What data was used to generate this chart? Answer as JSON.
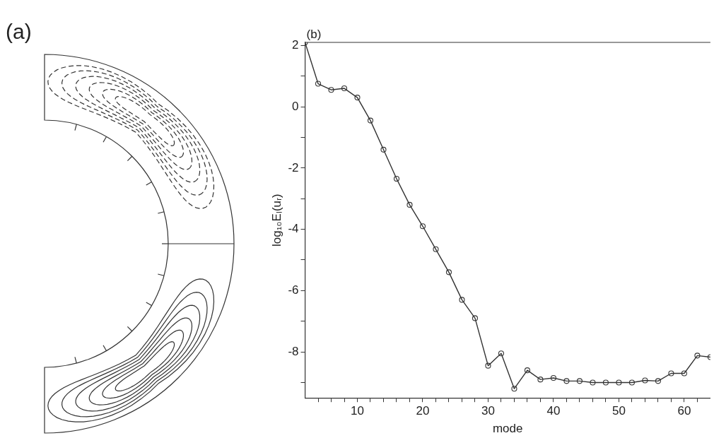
{
  "chart_data": [
    {
      "type": "other",
      "title": "(a)"
    },
    {
      "type": "line",
      "title": "(b)",
      "xlabel": "mode",
      "ylabel": "log₁₀Eₗ(uᵣ)",
      "x": [
        2,
        4,
        6,
        8,
        10,
        12,
        14,
        16,
        18,
        20,
        22,
        24,
        26,
        28,
        30,
        32,
        34,
        36,
        38,
        40,
        42,
        44,
        46,
        48,
        50,
        52,
        54,
        56,
        58,
        60,
        62,
        64
      ],
      "series": [
        {
          "color": "#333333",
          "values": [
            2.1,
            0.75,
            0.55,
            0.6,
            0.3,
            -0.45,
            -1.4,
            -2.35,
            -3.2,
            -3.9,
            -4.65,
            -5.4,
            -6.3,
            -6.9,
            -8.45,
            -8.05,
            -9.2,
            -8.6,
            -8.9,
            -8.85,
            -8.95,
            -8.95,
            -9.0,
            -9.0,
            -9.0,
            -9.0,
            -8.93,
            -8.95,
            -8.7,
            -8.7,
            -8.12,
            -8.17
          ]
        }
      ],
      "xlim": [
        2,
        64
      ],
      "xticks": [
        {
          "value": 4,
          "label": null
        },
        {
          "value": 6,
          "label": null
        },
        {
          "value": 8,
          "label": null
        },
        10,
        {
          "value": 12,
          "label": null
        },
        {
          "value": 14,
          "label": null
        },
        {
          "value": 16,
          "label": null
        },
        {
          "value": 18,
          "label": null
        },
        20,
        {
          "value": 22,
          "label": null
        },
        {
          "value": 24,
          "label": null
        },
        {
          "value": 26,
          "label": null
        },
        {
          "value": 28,
          "label": null
        },
        30,
        {
          "value": 32,
          "label": null
        },
        {
          "value": 34,
          "label": null
        },
        {
          "value": 36,
          "label": null
        },
        {
          "value": 38,
          "label": null
        },
        40,
        {
          "value": 42,
          "label": null
        },
        {
          "value": 44,
          "label": null
        },
        {
          "value": 46,
          "label": null
        },
        {
          "value": 48,
          "label": null
        },
        50,
        {
          "value": 52,
          "label": null
        },
        {
          "value": 54,
          "label": null
        },
        {
          "value": 56,
          "label": null
        },
        {
          "value": 58,
          "label": null
        },
        60,
        {
          "value": 62,
          "label": null
        }
      ],
      "ylim": [
        -9.5,
        2.1
      ],
      "yticks": [
        {
          "value": -9,
          "label": null
        },
        -8,
        {
          "value": -7,
          "label": null
        },
        -6,
        {
          "value": -5,
          "label": null
        },
        -4,
        {
          "value": -3,
          "label": null
        },
        -2,
        {
          "value": -1,
          "label": null
        },
        0,
        {
          "value": 1,
          "label": null
        },
        2
      ],
      "grid": false,
      "legend": false,
      "marker": "circle",
      "line_style": "solid"
    }
  ]
}
